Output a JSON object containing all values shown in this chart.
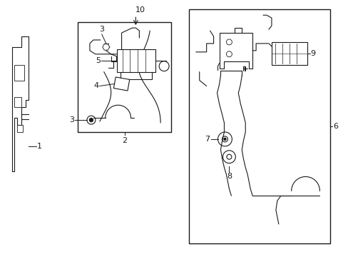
{
  "background_color": "#ffffff",
  "line_color": "#1a1a1a",
  "lw": 0.8,
  "blw": 1.0,
  "fig_w": 4.89,
  "fig_h": 3.6,
  "dpi": 100
}
